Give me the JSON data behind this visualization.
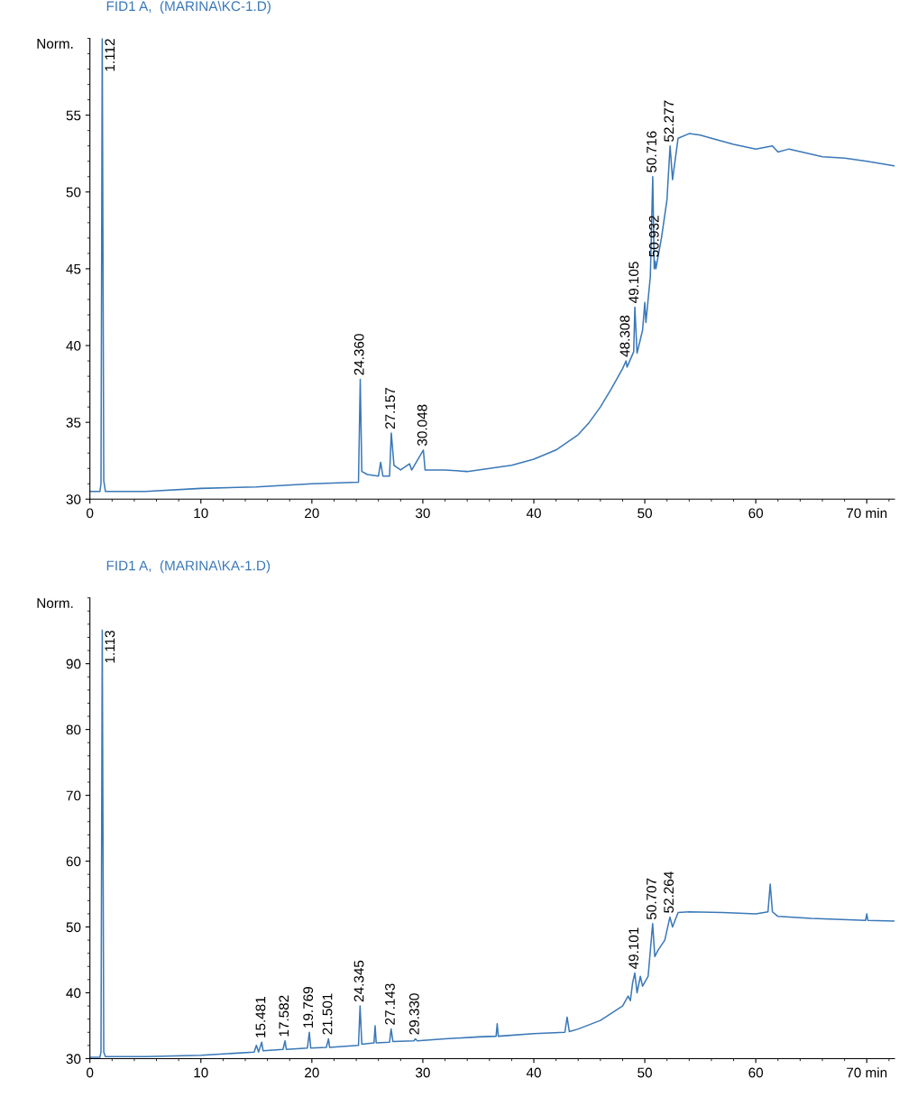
{
  "chart_data": [
    {
      "type": "line",
      "title": "FID1 A,  (MARINA\\KC-1.D)",
      "ylabel": "Norm.",
      "xlim": [
        0,
        72.5
      ],
      "ylim": [
        30,
        60
      ],
      "xticks": [
        0,
        10,
        20,
        30,
        40,
        50,
        60,
        {
          "value": 70,
          "label": "70 min"
        }
      ],
      "yticks": [
        30,
        35,
        40,
        45,
        50,
        55
      ],
      "grid": false,
      "legend": false,
      "series": [
        {
          "color": "#3a78b8",
          "x": [
            0,
            0.9,
            1.0,
            1.112,
            1.25,
            1.4,
            5,
            10,
            15,
            20,
            24.2,
            24.36,
            24.5,
            25,
            26,
            26.2,
            26.4,
            27.0,
            27.157,
            27.4,
            28,
            28.8,
            29,
            30.048,
            30.2,
            32,
            34,
            36,
            38,
            40,
            42,
            44,
            45,
            46,
            47,
            48,
            48.308,
            48.4,
            49.0,
            49.105,
            49.3,
            49.8,
            50.0,
            50.1,
            50.5,
            50.716,
            50.85,
            50.932,
            51.0,
            51.5,
            52.0,
            52.277,
            52.5,
            53,
            54,
            55,
            56,
            58,
            60,
            61.5,
            62,
            63,
            66,
            68,
            70,
            72.5
          ],
          "values": [
            30.5,
            30.5,
            31,
            60,
            31.2,
            30.5,
            30.5,
            30.7,
            30.8,
            31.0,
            31.1,
            37.8,
            31.8,
            31.6,
            31.5,
            32.4,
            31.5,
            31.5,
            34.3,
            32.2,
            31.9,
            32.3,
            31.9,
            33.2,
            31.9,
            31.9,
            31.8,
            32.0,
            32.2,
            32.6,
            33.2,
            34.2,
            35.0,
            36.0,
            37.2,
            38.5,
            39.0,
            38.6,
            39.6,
            42.5,
            39.5,
            41,
            42.8,
            41.5,
            44.5,
            51,
            45,
            45.5,
            45,
            47,
            49.5,
            53,
            50.8,
            53.5,
            53.8,
            53.7,
            53.5,
            53.1,
            52.8,
            53.0,
            52.6,
            52.8,
            52.3,
            52.2,
            52.0,
            51.7
          ]
        }
      ],
      "annotations": [
        {
          "text": "1.112",
          "x": 1.112,
          "y": 60
        },
        {
          "text": "24.360",
          "x": 24.36,
          "y": 37.8
        },
        {
          "text": "27.157",
          "x": 27.157,
          "y": 34.3
        },
        {
          "text": "30.048",
          "x": 30.048,
          "y": 33.2
        },
        {
          "text": "48.308",
          "x": 48.308,
          "y": 39.0
        },
        {
          "text": "49.105",
          "x": 49.105,
          "y": 42.5
        },
        {
          "text": "50.716",
          "x": 50.716,
          "y": 51
        },
        {
          "text": "50.932",
          "x": 50.932,
          "y": 45.5
        },
        {
          "text": "52.277",
          "x": 52.277,
          "y": 53
        }
      ]
    },
    {
      "type": "line",
      "title": "FID1 A,  (MARINA\\KA-1.D)",
      "ylabel": "Norm.",
      "xlim": [
        0,
        72.5
      ],
      "ylim": [
        30,
        100
      ],
      "xticks": [
        0,
        10,
        20,
        30,
        40,
        50,
        60,
        {
          "value": 70,
          "label": "70 min"
        }
      ],
      "yticks": [
        30,
        40,
        50,
        60,
        70,
        80,
        90
      ],
      "grid": false,
      "legend": false,
      "series": [
        {
          "color": "#3a78b8",
          "x": [
            0,
            0.9,
            1.0,
            1.113,
            1.25,
            1.4,
            5,
            10,
            14.8,
            15.0,
            15.2,
            15.481,
            15.6,
            17.4,
            17.582,
            17.7,
            19.6,
            19.769,
            19.9,
            21.3,
            21.501,
            21.6,
            24.2,
            24.345,
            24.5,
            25.6,
            25.7,
            25.8,
            27.0,
            27.143,
            27.3,
            29.2,
            29.33,
            29.5,
            32,
            35,
            36.6,
            36.7,
            36.8,
            40,
            42.8,
            43.0,
            43.2,
            44,
            46,
            48,
            48.5,
            48.7,
            48.9,
            49.101,
            49.3,
            49.6,
            49.8,
            50.3,
            50.707,
            50.9,
            51.2,
            51.8,
            52.264,
            52.5,
            53,
            54,
            57,
            60,
            61.1,
            61.3,
            61.5,
            62,
            65,
            69.9,
            70,
            70.1,
            72.5
          ],
          "values": [
            30.2,
            30.2,
            31,
            95.1,
            31,
            30.3,
            30.3,
            30.5,
            31,
            32,
            31,
            32.5,
            31.2,
            31.4,
            32.7,
            31.4,
            31.6,
            34.0,
            31.6,
            31.7,
            33.0,
            31.7,
            32.0,
            38.0,
            32.2,
            32.4,
            35.0,
            32.4,
            32.5,
            34.5,
            32.6,
            32.7,
            33.0,
            32.7,
            33.0,
            33.3,
            33.4,
            35.3,
            33.4,
            33.8,
            34.0,
            36.3,
            34.1,
            34.5,
            35.8,
            38.0,
            39.5,
            38.8,
            41.5,
            43,
            40.0,
            42.5,
            41.0,
            42.5,
            50.5,
            45.5,
            46.5,
            48.0,
            51.5,
            50.0,
            52.2,
            52.3,
            52.2,
            52.0,
            52.3,
            56.5,
            52.3,
            51.6,
            51.3,
            51.0,
            52.0,
            51.0,
            50.9
          ]
        }
      ],
      "annotations": [
        {
          "text": "1.113",
          "x": 1.113,
          "y": 95.1
        },
        {
          "text": "15.481",
          "x": 15.481,
          "y": 32.5
        },
        {
          "text": "17.582",
          "x": 17.582,
          "y": 32.7
        },
        {
          "text": "19.769",
          "x": 19.769,
          "y": 34.0
        },
        {
          "text": "21.501",
          "x": 21.501,
          "y": 33.0
        },
        {
          "text": "24.345",
          "x": 24.345,
          "y": 38.0
        },
        {
          "text": "27.143",
          "x": 27.143,
          "y": 34.5
        },
        {
          "text": "29.330",
          "x": 29.33,
          "y": 33.0
        },
        {
          "text": "49.101",
          "x": 49.101,
          "y": 43
        },
        {
          "text": "50.707",
          "x": 50.707,
          "y": 50.5
        },
        {
          "text": "52.264",
          "x": 52.264,
          "y": 51.5
        }
      ]
    }
  ]
}
